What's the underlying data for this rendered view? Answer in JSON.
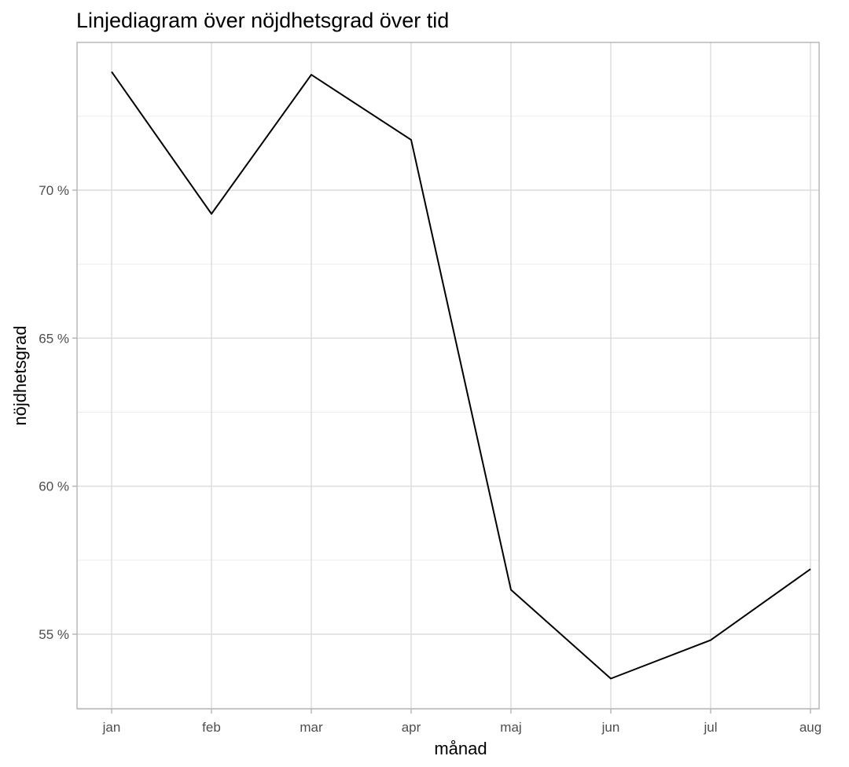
{
  "chart_data": {
    "type": "line",
    "title": "Linjediagram över nöjdhetsgrad över tid",
    "xlabel": "månad",
    "ylabel": "nöjdhetsgrad",
    "categories": [
      "jan",
      "feb",
      "mar",
      "apr",
      "maj",
      "jun",
      "jul",
      "aug"
    ],
    "series": [
      {
        "values": [
          74.0,
          69.2,
          73.9,
          71.7,
          56.5,
          53.5,
          54.8,
          57.2
        ],
        "color": "#000000"
      }
    ],
    "y_unit_suffix": " %",
    "ylim": [
      52.5,
      75.0
    ],
    "yticks": [
      55,
      60,
      65,
      70
    ],
    "y_tick_labels": [
      "55 %",
      "60 %",
      "65 %",
      "70 %"
    ],
    "grid": true,
    "legend": "none"
  }
}
